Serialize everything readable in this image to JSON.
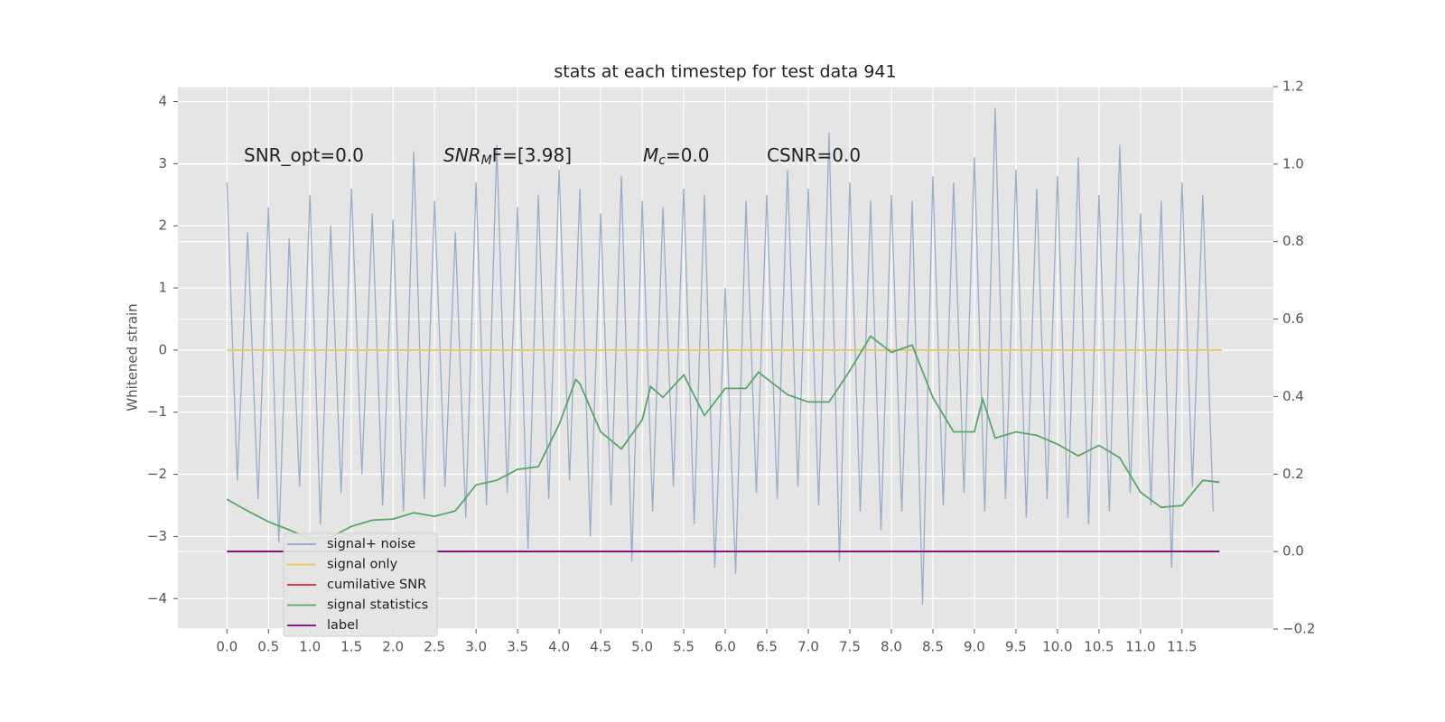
{
  "chart_data": {
    "type": "line",
    "title": "stats at each timestep for test data 941",
    "ylabel": "Whitened strain",
    "annotations": [
      {
        "text": "SNR_opt=0.0"
      },
      {
        "math": "SNR",
        "sub": "M",
        "text": "F=[3.98]"
      },
      {
        "math": "M",
        "sub": "c",
        "text": "=0.0"
      },
      {
        "text": "CSNR=0.0"
      }
    ],
    "xlim": [
      -0.59,
      12.6
    ],
    "xticks": [
      {
        "value": 0,
        "label": "0.0"
      },
      {
        "value": 0.5,
        "label": "0.5"
      },
      {
        "value": 1,
        "label": "1.0"
      },
      {
        "value": 1.5,
        "label": "1.5"
      },
      {
        "value": 2,
        "label": "2.0"
      },
      {
        "value": 2.5,
        "label": "2.5"
      },
      {
        "value": 3,
        "label": "3.0"
      },
      {
        "value": 3.5,
        "label": "3.5"
      },
      {
        "value": 4,
        "label": "4.0"
      },
      {
        "value": 4.5,
        "label": "4.5"
      },
      {
        "value": 5,
        "label": "5.0"
      },
      {
        "value": 5.5,
        "label": "5.5"
      },
      {
        "value": 6,
        "label": "6.0"
      },
      {
        "value": 6.5,
        "label": "6.5"
      },
      {
        "value": 7,
        "label": "7.0"
      },
      {
        "value": 7.5,
        "label": "7.5"
      },
      {
        "value": 8,
        "label": "8.0"
      },
      {
        "value": 8.5,
        "label": "8.5"
      },
      {
        "value": 9,
        "label": "9.0"
      },
      {
        "value": 9.5,
        "label": "9.5"
      },
      {
        "value": 10,
        "label": "10.0"
      },
      {
        "value": 10.5,
        "label": "10.5"
      },
      {
        "value": 11,
        "label": "11.0"
      },
      {
        "value": 11.5,
        "label": "11.5"
      }
    ],
    "ylim": [
      -4.49,
      4.24
    ],
    "yticks": [
      {
        "value": -4,
        "label": "−4"
      },
      {
        "value": -3,
        "label": "−3"
      },
      {
        "value": -2,
        "label": "−2"
      },
      {
        "value": -1,
        "label": "−1"
      },
      0,
      1,
      2,
      3,
      4
    ],
    "y2lim": [
      -0.2,
      1.2
    ],
    "y2ticks": [
      {
        "value": -0.2,
        "label": "−0.2"
      },
      {
        "value": 0,
        "label": "0.0"
      },
      {
        "value": 0.2,
        "label": "0.2"
      },
      {
        "value": 0.4,
        "label": "0.4"
      },
      {
        "value": 0.6,
        "label": "0.6"
      },
      {
        "value": 0.8,
        "label": "0.8"
      },
      {
        "value": 1,
        "label": "1.0"
      },
      {
        "value": 1.2,
        "label": "1.2"
      }
    ],
    "grid": true,
    "legend": "lower left",
    "series": [
      {
        "name": "signal+ noise",
        "color": "#8fa5cc",
        "x": [
          0,
          0.125,
          0.25,
          0.375,
          0.5,
          0.625,
          0.75,
          0.875,
          1,
          1.125,
          1.25,
          1.375,
          1.5,
          1.625,
          1.75,
          1.875,
          2,
          2.125,
          2.25,
          2.375,
          2.5,
          2.625,
          2.75,
          2.875,
          3,
          3.125,
          3.25,
          3.375,
          3.5,
          3.625,
          3.75,
          3.875,
          4,
          4.125,
          4.25,
          4.375,
          4.5,
          4.625,
          4.75,
          4.875,
          5,
          5.125,
          5.25,
          5.375,
          5.5,
          5.625,
          5.75,
          5.875,
          6,
          6.125,
          6.25,
          6.375,
          6.5,
          6.625,
          6.75,
          6.875,
          7,
          7.125,
          7.25,
          7.375,
          7.5,
          7.625,
          7.75,
          7.875,
          8,
          8.125,
          8.25,
          8.375,
          8.5,
          8.625,
          8.75,
          8.875,
          9,
          9.125,
          9.25,
          9.375,
          9.5,
          9.625,
          9.75,
          9.875,
          10,
          10.125,
          10.25,
          10.375,
          10.5,
          10.625,
          10.75,
          10.875,
          11,
          11.125,
          11.25,
          11.375,
          11.5,
          11.625,
          11.75,
          11.875
        ],
        "values": [
          2.7,
          -2.1,
          1.9,
          -2.4,
          2.3,
          -3.1,
          1.8,
          -2.2,
          2.5,
          -2.8,
          2.0,
          -2.3,
          2.6,
          -2.0,
          2.2,
          -2.5,
          2.1,
          -2.6,
          3.2,
          -2.4,
          2.4,
          -2.2,
          1.9,
          -2.7,
          2.7,
          -2.5,
          3.3,
          -2.3,
          2.3,
          -3.2,
          2.5,
          -2.4,
          2.9,
          -2.1,
          2.6,
          -3.0,
          2.2,
          -2.5,
          2.8,
          -3.4,
          2.4,
          -2.6,
          2.3,
          -2.2,
          2.6,
          -2.8,
          2.5,
          -3.5,
          1.0,
          -3.6,
          2.4,
          -2.3,
          2.5,
          -2.4,
          2.9,
          -2.2,
          2.6,
          -2.5,
          3.5,
          -3.4,
          2.7,
          -2.6,
          2.4,
          -2.9,
          2.5,
          -2.6,
          2.4,
          -4.1,
          2.8,
          -2.5,
          2.7,
          -2.3,
          3.1,
          -2.6,
          3.9,
          -2.4,
          2.9,
          -2.7,
          2.6,
          -2.4,
          2.8,
          -2.7,
          3.1,
          -2.8,
          2.5,
          -2.6,
          3.3,
          -2.3,
          2.2,
          -2.5,
          2.4,
          -3.5,
          2.7,
          -2.2,
          2.5,
          -2.6
        ]
      },
      {
        "name": "signal only",
        "color": "#f0c35a",
        "x": [
          0,
          11.98
        ],
        "values": [
          0,
          0
        ]
      },
      {
        "name": "cumilative SNR",
        "color": "#d62728",
        "axis": "y2",
        "x": [
          0,
          11.95
        ],
        "values": [
          0,
          0
        ]
      },
      {
        "name": "signal statistics",
        "color": "#55a868",
        "axis": "y2",
        "x": [
          0,
          0.25,
          0.5,
          0.75,
          1,
          1.25,
          1.5,
          1.75,
          2,
          2.25,
          2.5,
          2.75,
          3,
          3.25,
          3.5,
          3.75,
          4,
          4.2,
          4.25,
          4.5,
          4.75,
          5,
          5.1,
          5.25,
          5.5,
          5.75,
          6,
          6.25,
          6.4,
          6.75,
          7,
          7.25,
          7.5,
          7.75,
          8,
          8.25,
          8.5,
          8.75,
          9,
          9.1,
          9.25,
          9.5,
          9.75,
          10,
          10.25,
          10.5,
          10.75,
          11,
          11.25,
          11.5,
          11.75,
          11.95
        ],
        "values": [
          0.135,
          0.105,
          0.077,
          0.056,
          0.033,
          0.037,
          0.065,
          0.081,
          0.084,
          0.1,
          0.091,
          0.105,
          0.172,
          0.184,
          0.212,
          0.219,
          0.328,
          0.444,
          0.433,
          0.309,
          0.265,
          0.34,
          0.426,
          0.398,
          0.456,
          0.351,
          0.421,
          0.421,
          0.463,
          0.405,
          0.386,
          0.386,
          0.467,
          0.556,
          0.514,
          0.533,
          0.398,
          0.309,
          0.309,
          0.393,
          0.293,
          0.309,
          0.3,
          0.277,
          0.247,
          0.274,
          0.242,
          0.153,
          0.114,
          0.119,
          0.184,
          0.179
        ]
      },
      {
        "name": "label",
        "color": "#800080",
        "axis": "y2",
        "x": [
          0,
          11.95
        ],
        "values": [
          0,
          0
        ]
      }
    ]
  }
}
